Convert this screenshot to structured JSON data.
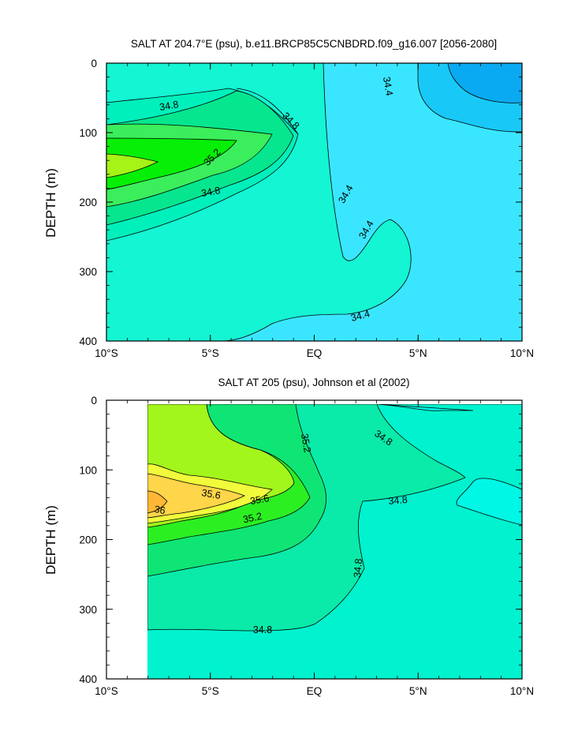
{
  "chart_data": [
    {
      "type": "contour",
      "title": "SALT AT 204.7°E (psu), b.e11.BRCP85C5CNBDRD.f09_g16.007 [2056-2080]",
      "ylabel": "DEPTH (m)",
      "xlabel": "",
      "x_ticks": [
        "10°S",
        "5°S",
        "EQ",
        "5°N",
        "10°N"
      ],
      "y_ticks": [
        "0",
        "100",
        "200",
        "300",
        "400"
      ],
      "xlim": [
        -10,
        10
      ],
      "ylim": [
        400,
        0
      ],
      "y_reversed": true,
      "contour_labels": [
        "34.8",
        "34.8",
        "35.2",
        "34.8",
        "34.4",
        "34.4",
        "34.4",
        "34.4"
      ],
      "data_extent_x": [
        -10,
        10
      ],
      "colors": {
        "lt34_0": "#0aaaf2",
        "b34_0_34_2": "#18c9f7",
        "b34_2_34_4": "#3ae6ff",
        "b34_4_34_6": "#14f5d3",
        "b34_6_34_8": "#00f0bc",
        "b34_8_35_0": "#06e68f",
        "b35_0_35_2": "#3bee5b",
        "b35_2_35_4": "#05f006",
        "b35_4_35_6": "#a6f316"
      }
    },
    {
      "type": "contour",
      "title": "SALT AT 205 (psu), Johnson et al (2002)",
      "ylabel": "DEPTH (m)",
      "xlabel": "",
      "x_ticks": [
        "10°S",
        "5°S",
        "EQ",
        "5°N",
        "10°N"
      ],
      "y_ticks": [
        "0",
        "100",
        "200",
        "300",
        "400"
      ],
      "xlim": [
        -10,
        10
      ],
      "ylim": [
        400,
        0
      ],
      "y_reversed": true,
      "contour_labels": [
        "35.2",
        "34.8",
        "35.6",
        "36",
        "35.6",
        "34.8",
        "35.2",
        "34.8",
        "34.8"
      ],
      "data_extent_x": [
        -8,
        10
      ],
      "colors": {
        "b34_4_34_6": "#00f7e6",
        "b34_6_34_8": "#00f3ce",
        "b34_8_35_0": "#0aeaa9",
        "b35_0_35_2": "#0ee574",
        "b35_2_35_4": "#2cef22",
        "b35_4_35_6": "#a3f61c",
        "b35_6_35_8": "#f1fb3c",
        "b35_8_36_0": "#ffd54a",
        "gt36_0": "#ffb735"
      }
    }
  ]
}
